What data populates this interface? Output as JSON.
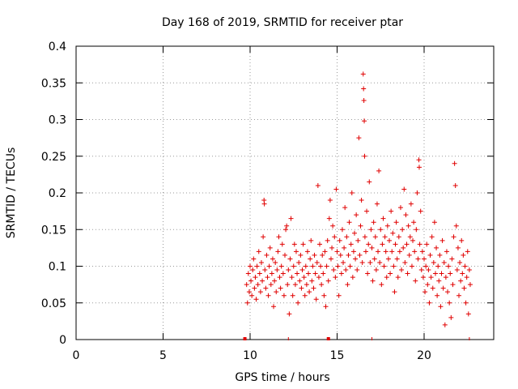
{
  "chart_data": {
    "type": "scatter",
    "title": "Day 168 of 2019, SRMTID for receiver ptar",
    "xlabel": "GPS time / hours",
    "ylabel": "SRMTID / TECUs",
    "xlim": [
      0,
      24
    ],
    "ylim": [
      0,
      0.4
    ],
    "xticks": [
      0,
      5,
      10,
      15,
      20
    ],
    "yticks": [
      0,
      0.05,
      0.1,
      0.15,
      0.2,
      0.25,
      0.3,
      0.35,
      0.4
    ],
    "xtick_labels": [
      "0",
      "5",
      "10",
      "15",
      "20"
    ],
    "ytick_labels": [
      "0",
      "0.05",
      "0.1",
      "0.15",
      "0.2",
      "0.25",
      "0.3",
      "0.35",
      "0.4"
    ],
    "grid": true,
    "marker": "+",
    "color": "#e00000",
    "series": [
      {
        "name": "SRMTID",
        "points": [
          [
            9.8,
            0.075
          ],
          [
            9.85,
            0.05
          ],
          [
            9.9,
            0.09
          ],
          [
            9.95,
            0.065
          ],
          [
            10.0,
            0.1
          ],
          [
            10.05,
            0.08
          ],
          [
            10.1,
            0.06
          ],
          [
            10.15,
            0.095
          ],
          [
            10.2,
            0.11
          ],
          [
            10.25,
            0.07
          ],
          [
            10.3,
            0.085
          ],
          [
            10.35,
            0.055
          ],
          [
            10.4,
            0.1
          ],
          [
            10.45,
            0.075
          ],
          [
            10.5,
            0.12
          ],
          [
            10.55,
            0.09
          ],
          [
            10.6,
            0.065
          ],
          [
            10.65,
            0.105
          ],
          [
            10.7,
            0.08
          ],
          [
            10.75,
            0.14
          ],
          [
            10.8,
            0.19
          ],
          [
            10.82,
            0.185
          ],
          [
            10.85,
            0.095
          ],
          [
            10.9,
            0.07
          ],
          [
            10.95,
            0.115
          ],
          [
            11.0,
            0.085
          ],
          [
            11.05,
            0.06
          ],
          [
            11.1,
            0.1
          ],
          [
            11.15,
            0.125
          ],
          [
            11.2,
            0.075
          ],
          [
            11.25,
            0.09
          ],
          [
            11.3,
            0.11
          ],
          [
            11.35,
            0.045
          ],
          [
            11.4,
            0.08
          ],
          [
            11.45,
            0.105
          ],
          [
            11.5,
            0.065
          ],
          [
            11.55,
            0.095
          ],
          [
            11.6,
            0.12
          ],
          [
            11.65,
            0.14
          ],
          [
            11.7,
            0.085
          ],
          [
            11.75,
            0.07
          ],
          [
            11.8,
            0.1
          ],
          [
            11.85,
            0.13
          ],
          [
            11.9,
            0.09
          ],
          [
            11.95,
            0.06
          ],
          [
            12.0,
            0.115
          ],
          [
            12.05,
            0.15
          ],
          [
            12.1,
            0.155
          ],
          [
            12.15,
            0.075
          ],
          [
            12.2,
            0.095
          ],
          [
            12.25,
            0.035
          ],
          [
            12.3,
            0.11
          ],
          [
            12.35,
            0.165
          ],
          [
            12.4,
            0.085
          ],
          [
            12.45,
            0.06
          ],
          [
            12.5,
            0.1
          ],
          [
            12.55,
            0.13
          ],
          [
            12.6,
            0.075
          ],
          [
            12.65,
            0.12
          ],
          [
            12.7,
            0.09
          ],
          [
            12.75,
            0.05
          ],
          [
            12.8,
            0.105
          ],
          [
            12.85,
            0.08
          ],
          [
            12.9,
            0.115
          ],
          [
            12.95,
            0.07
          ],
          [
            13.0,
            0.095
          ],
          [
            13.05,
            0.13
          ],
          [
            13.1,
            0.085
          ],
          [
            13.15,
            0.06
          ],
          [
            13.2,
            0.1
          ],
          [
            13.25,
            0.075
          ],
          [
            13.3,
            0.12
          ],
          [
            13.35,
            0.09
          ],
          [
            13.4,
            0.065
          ],
          [
            13.45,
            0.11
          ],
          [
            13.5,
            0.135
          ],
          [
            13.55,
            0.08
          ],
          [
            13.6,
            0.1
          ],
          [
            13.65,
            0.07
          ],
          [
            13.7,
            0.115
          ],
          [
            13.75,
            0.09
          ],
          [
            13.8,
            0.055
          ],
          [
            13.85,
            0.105
          ],
          [
            13.9,
            0.21
          ],
          [
            13.95,
            0.085
          ],
          [
            14.0,
            0.13
          ],
          [
            14.05,
            0.1
          ],
          [
            14.1,
            0.075
          ],
          [
            14.15,
            0.115
          ],
          [
            14.2,
            0.09
          ],
          [
            14.25,
            0.06
          ],
          [
            14.3,
            0.12
          ],
          [
            14.35,
            0.045
          ],
          [
            14.4,
            0.1
          ],
          [
            14.45,
            0.135
          ],
          [
            14.5,
            0.08
          ],
          [
            14.55,
            0.165
          ],
          [
            14.6,
            0.19
          ],
          [
            14.65,
            0.11
          ],
          [
            14.7,
            0.125
          ],
          [
            14.75,
            0.155
          ],
          [
            14.8,
            0.095
          ],
          [
            14.85,
            0.14
          ],
          [
            14.9,
            0.085
          ],
          [
            14.95,
            0.205
          ],
          [
            15.0,
            0.12
          ],
          [
            15.05,
            0.1
          ],
          [
            15.1,
            0.06
          ],
          [
            15.15,
            0.135
          ],
          [
            15.2,
            0.115
          ],
          [
            15.25,
            0.09
          ],
          [
            15.3,
            0.15
          ],
          [
            15.35,
            0.105
          ],
          [
            15.4,
            0.125
          ],
          [
            15.45,
            0.18
          ],
          [
            15.5,
            0.095
          ],
          [
            15.55,
            0.14
          ],
          [
            15.6,
            0.075
          ],
          [
            15.65,
            0.115
          ],
          [
            15.7,
            0.16
          ],
          [
            15.75,
            0.1
          ],
          [
            15.8,
            0.13
          ],
          [
            15.85,
            0.2
          ],
          [
            15.9,
            0.085
          ],
          [
            15.95,
            0.12
          ],
          [
            16.0,
            0.145
          ],
          [
            16.05,
            0.11
          ],
          [
            16.1,
            0.17
          ],
          [
            16.15,
            0.095
          ],
          [
            16.2,
            0.135
          ],
          [
            16.25,
            0.275
          ],
          [
            16.3,
            0.115
          ],
          [
            16.35,
            0.155
          ],
          [
            16.4,
            0.19
          ],
          [
            16.45,
            0.105
          ],
          [
            16.5,
            0.362
          ],
          [
            16.52,
            0.342
          ],
          [
            16.54,
            0.326
          ],
          [
            16.56,
            0.298
          ],
          [
            16.58,
            0.25
          ],
          [
            16.6,
            0.14
          ],
          [
            16.65,
            0.12
          ],
          [
            16.7,
            0.175
          ],
          [
            16.75,
            0.09
          ],
          [
            16.8,
            0.13
          ],
          [
            16.85,
            0.215
          ],
          [
            16.9,
            0.105
          ],
          [
            16.95,
            0.15
          ],
          [
            17.0,
            0.125
          ],
          [
            17.05,
            0.08
          ],
          [
            17.1,
            0.16
          ],
          [
            17.15,
            0.11
          ],
          [
            17.2,
            0.14
          ],
          [
            17.25,
            0.095
          ],
          [
            17.3,
            0.185
          ],
          [
            17.35,
            0.12
          ],
          [
            17.4,
            0.23
          ],
          [
            17.45,
            0.105
          ],
          [
            17.5,
            0.15
          ],
          [
            17.55,
            0.075
          ],
          [
            17.6,
            0.13
          ],
          [
            17.65,
            0.165
          ],
          [
            17.7,
            0.1
          ],
          [
            17.75,
            0.14
          ],
          [
            17.8,
            0.12
          ],
          [
            17.85,
            0.085
          ],
          [
            17.9,
            0.155
          ],
          [
            17.95,
            0.11
          ],
          [
            18.0,
            0.135
          ],
          [
            18.05,
            0.09
          ],
          [
            18.1,
            0.175
          ],
          [
            18.15,
            0.12
          ],
          [
            18.2,
            0.145
          ],
          [
            18.25,
            0.1
          ],
          [
            18.3,
            0.065
          ],
          [
            18.35,
            0.13
          ],
          [
            18.4,
            0.16
          ],
          [
            18.45,
            0.11
          ],
          [
            18.5,
            0.085
          ],
          [
            18.55,
            0.14
          ],
          [
            18.6,
            0.12
          ],
          [
            18.65,
            0.18
          ],
          [
            18.7,
            0.095
          ],
          [
            18.75,
            0.15
          ],
          [
            18.8,
            0.125
          ],
          [
            18.85,
            0.205
          ],
          [
            18.9,
            0.105
          ],
          [
            18.95,
            0.17
          ],
          [
            19.0,
            0.13
          ],
          [
            19.05,
            0.09
          ],
          [
            19.1,
            0.155
          ],
          [
            19.15,
            0.115
          ],
          [
            19.2,
            0.14
          ],
          [
            19.25,
            0.185
          ],
          [
            19.3,
            0.1
          ],
          [
            19.35,
            0.135
          ],
          [
            19.4,
            0.16
          ],
          [
            19.45,
            0.12
          ],
          [
            19.5,
            0.08
          ],
          [
            19.55,
            0.15
          ],
          [
            19.6,
            0.2
          ],
          [
            19.65,
            0.11
          ],
          [
            19.7,
            0.245
          ],
          [
            19.72,
            0.235
          ],
          [
            19.75,
            0.13
          ],
          [
            19.8,
            0.175
          ],
          [
            19.85,
            0.095
          ],
          [
            19.9,
            0.12
          ],
          [
            19.95,
            0.085
          ],
          [
            20.0,
            0.11
          ],
          [
            20.05,
            0.065
          ],
          [
            20.1,
            0.1
          ],
          [
            20.15,
            0.13
          ],
          [
            20.2,
            0.075
          ],
          [
            20.25,
            0.095
          ],
          [
            20.3,
            0.05
          ],
          [
            20.35,
            0.115
          ],
          [
            20.4,
            0.085
          ],
          [
            20.45,
            0.14
          ],
          [
            20.5,
            0.07
          ],
          [
            20.55,
            0.105
          ],
          [
            20.6,
            0.16
          ],
          [
            20.65,
            0.09
          ],
          [
            20.7,
            0.125
          ],
          [
            20.75,
            0.06
          ],
          [
            20.8,
            0.1
          ],
          [
            20.85,
            0.08
          ],
          [
            20.9,
            0.115
          ],
          [
            20.95,
            0.045
          ],
          [
            21.0,
            0.09
          ],
          [
            21.05,
            0.135
          ],
          [
            21.1,
            0.07
          ],
          [
            21.15,
            0.105
          ],
          [
            21.2,
            0.02
          ],
          [
            21.25,
            0.085
          ],
          [
            21.3,
            0.12
          ],
          [
            21.35,
            0.065
          ],
          [
            21.4,
            0.1
          ],
          [
            21.45,
            0.05
          ],
          [
            21.5,
            0.09
          ],
          [
            21.55,
            0.03
          ],
          [
            21.6,
            0.11
          ],
          [
            21.65,
            0.075
          ],
          [
            21.7,
            0.14
          ],
          [
            21.75,
            0.24
          ],
          [
            21.8,
            0.21
          ],
          [
            21.85,
            0.155
          ],
          [
            21.9,
            0.095
          ],
          [
            21.95,
            0.125
          ],
          [
            22.0,
            0.06
          ],
          [
            22.05,
            0.105
          ],
          [
            22.1,
            0.08
          ],
          [
            22.15,
            0.135
          ],
          [
            22.2,
            0.09
          ],
          [
            22.25,
            0.115
          ],
          [
            22.3,
            0.07
          ],
          [
            22.35,
            0.1
          ],
          [
            22.4,
            0.05
          ],
          [
            22.45,
            0.085
          ],
          [
            22.5,
            0.12
          ],
          [
            22.55,
            0.035
          ],
          [
            22.6,
            0.095
          ],
          [
            22.65,
            0.075
          ]
        ]
      }
    ],
    "axis_markers": [
      9.7,
      14.5
    ]
  }
}
